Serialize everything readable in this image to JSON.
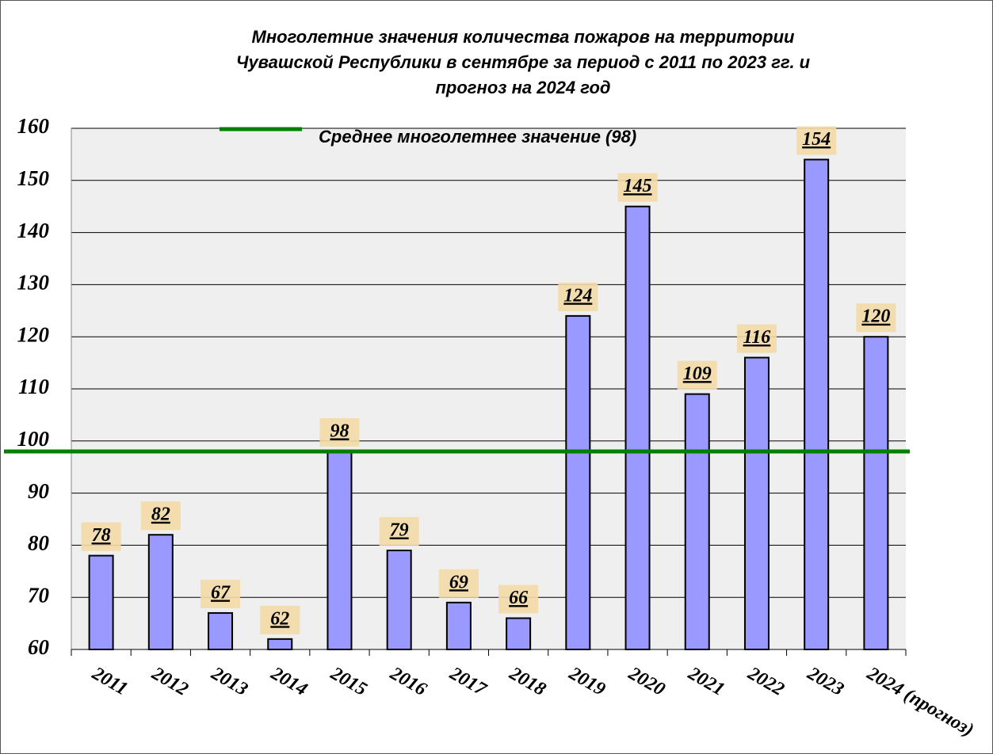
{
  "chart_data": {
    "type": "bar",
    "title": [
      "Многолетние значения количества пожаров на территории",
      "Чувашской Республики в сентябре за период с 2011 по 2023 гг. и",
      "прогноз на 2024 год"
    ],
    "categories": [
      "2011",
      "2012",
      "2013",
      "2014",
      "2015",
      "2016",
      "2017",
      "2018",
      "2019",
      "2020",
      "2021",
      "2022",
      "2023",
      "2024 (прогноз)"
    ],
    "values": [
      78,
      82,
      67,
      62,
      98,
      79,
      69,
      66,
      124,
      145,
      109,
      116,
      154,
      120
    ],
    "color": "#9999ff",
    "ylim": [
      60,
      160
    ],
    "yticks": [
      60,
      70,
      80,
      90,
      100,
      110,
      120,
      130,
      140,
      150,
      160
    ],
    "grid": true,
    "reference_line": {
      "name": "Среднее многолетнее значение (98)",
      "value": 98,
      "color": "#008000"
    }
  }
}
